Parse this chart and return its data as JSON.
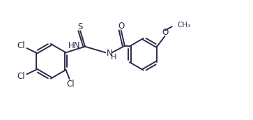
{
  "bg_color": "#ffffff",
  "line_color": "#2b2b4b",
  "line_width": 1.4,
  "dbo": 0.055,
  "fs": 8.5,
  "figsize": [
    3.63,
    1.72
  ],
  "dpi": 100,
  "xlim": [
    0.0,
    10.5
  ],
  "ylim": [
    0.5,
    5.2
  ]
}
